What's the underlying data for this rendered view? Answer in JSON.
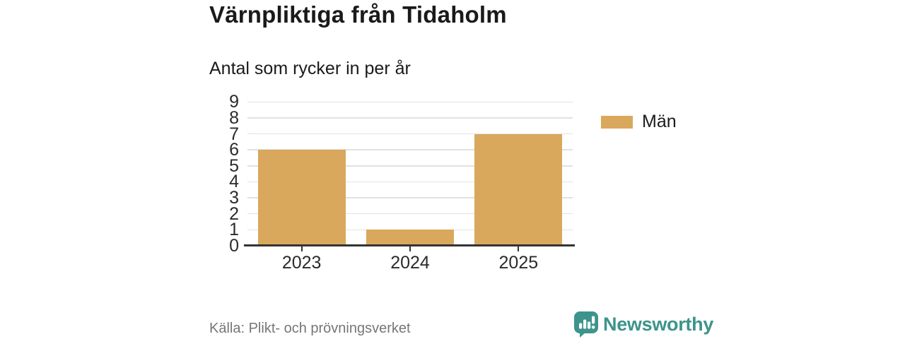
{
  "header": {
    "title": "Värnpliktiga från Tidaholm",
    "subtitle": "Antal som rycker in per år"
  },
  "chart_data": {
    "type": "bar",
    "title": "Värnpliktiga från Tidaholm",
    "subtitle": "Antal som rycker in per år",
    "categories": [
      "2023",
      "2024",
      "2025"
    ],
    "series": [
      {
        "name": "Män",
        "values": [
          6,
          1,
          7
        ],
        "color": "#d9a85c"
      }
    ],
    "xlabel": "",
    "ylabel": "",
    "ylim": [
      0,
      9.5
    ],
    "yticks": [
      0,
      1,
      2,
      3,
      4,
      5,
      6,
      7,
      8,
      9
    ],
    "grid": true,
    "legend_position": "right"
  },
  "legend": {
    "items": [
      {
        "label": "Män",
        "color": "#d9a85c"
      }
    ]
  },
  "footer": {
    "source": "Källa: Plikt- och prövningsverket",
    "brand": "Newsworthy"
  },
  "icons": {
    "newsworthy_logo": "speech-bubble-with-bar-chart-and-exclamation"
  },
  "colors": {
    "bar": "#d9a85c",
    "brand_teal": "#3d948c",
    "gridline": "#e2e2e2",
    "axis": "#333333",
    "text_dark": "#1a1a1a",
    "text_axis": "#2b2b2b",
    "text_source": "#767676",
    "background": "#ffffff"
  }
}
